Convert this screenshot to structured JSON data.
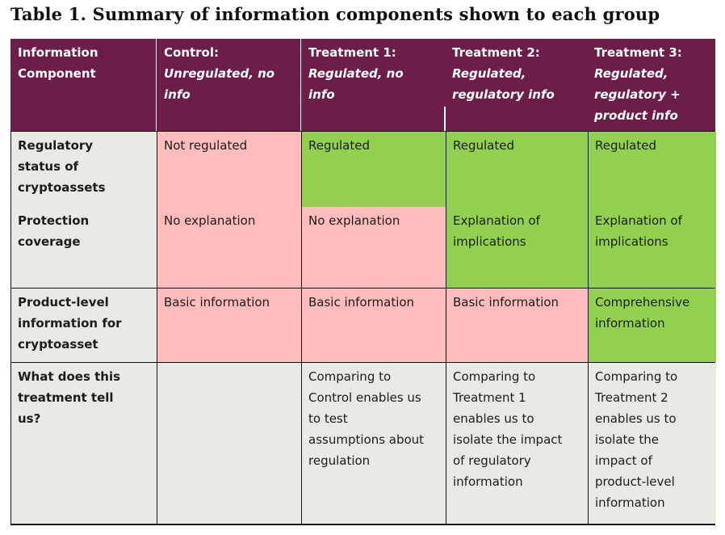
{
  "page": {
    "title": "Table 1. Summary of information components shown to each group"
  },
  "table": {
    "colors": {
      "header_bg": "#6a1e48",
      "header_text": "#ffffff",
      "negative": "#ffbcbc",
      "positive": "#92d050",
      "neutral": "#eae9e4",
      "border": "#141414"
    },
    "header": [
      {
        "label": "Information\nComponent",
        "desc": ""
      },
      {
        "label": "Control:",
        "desc": "Unregulated, no\ninfo"
      },
      {
        "label": "Treatment 1:",
        "desc": "Regulated, no\ninfo"
      },
      {
        "label": "Treatment 2:",
        "desc": "Regulated,\nregulatory info"
      },
      {
        "label": "Treatment 3:",
        "desc": "Regulated,\nregulatory +\nproduct info"
      }
    ],
    "rows": [
      {
        "label": "Regulatory\nstatus of\ncryptoassets",
        "cells": [
          {
            "text": "Not regulated",
            "status": "negative"
          },
          {
            "text": "Regulated",
            "status": "positive"
          },
          {
            "text": "Regulated",
            "status": "positive"
          },
          {
            "text": "Regulated",
            "status": "positive"
          }
        ]
      },
      {
        "label": "Protection\ncoverage",
        "cells": [
          {
            "text": "No explanation",
            "status": "negative"
          },
          {
            "text": "No explanation",
            "status": "negative"
          },
          {
            "text": "Explanation of\nimplications",
            "status": "positive"
          },
          {
            "text": "Explanation of\nimplications",
            "status": "positive"
          }
        ]
      },
      {
        "label": "Product-level\ninformation for\ncryptoasset",
        "cells": [
          {
            "text": "Basic information",
            "status": "negative"
          },
          {
            "text": "Basic information",
            "status": "negative"
          },
          {
            "text": "Basic information",
            "status": "negative"
          },
          {
            "text": "Comprehensive\ninformation",
            "status": "positive"
          }
        ]
      },
      {
        "label": "What does this\ntreatment tell\nus?",
        "cells": [
          {
            "text": "",
            "status": "neutral"
          },
          {
            "text": "Comparing to\nControl enables us\nto test\nassumptions about\nregulation",
            "status": "neutral"
          },
          {
            "text": "Comparing to\nTreatment 1\nenables us to\nisolate the impact\nof regulatory\ninformation",
            "status": "neutral"
          },
          {
            "text": "Comparing to\nTreatment 2\nenables us to\nisolate the\nimpact of\nproduct-level\ninformation",
            "status": "neutral"
          }
        ]
      }
    ]
  }
}
